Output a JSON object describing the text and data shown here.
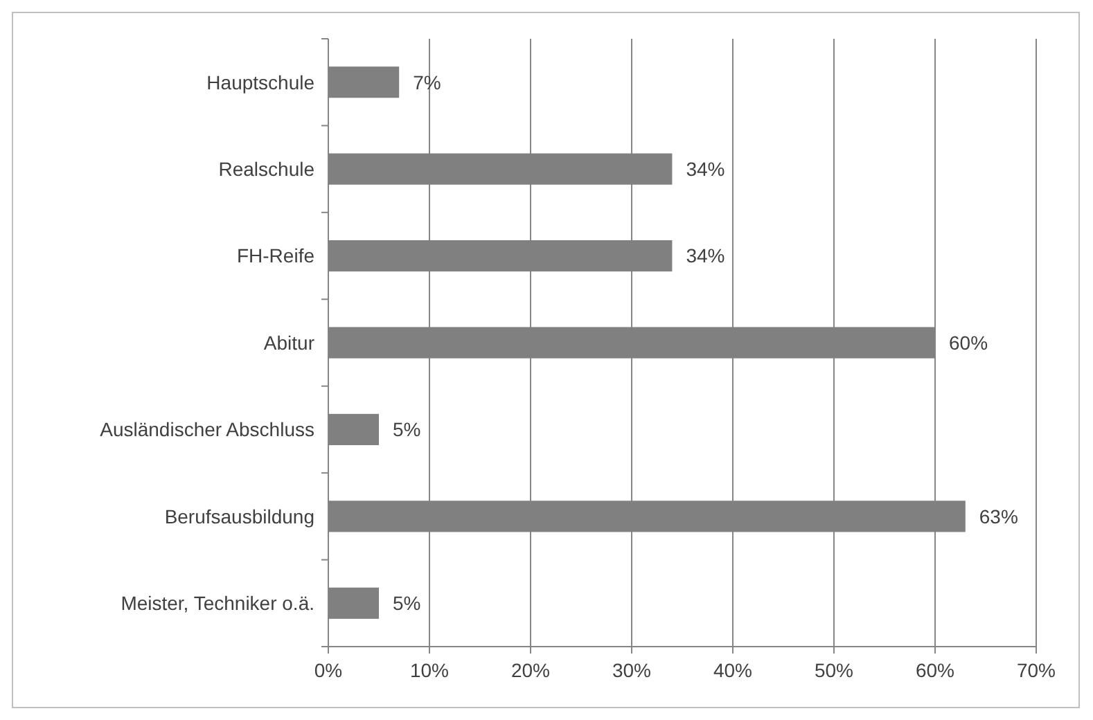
{
  "chart_data": {
    "type": "bar",
    "orientation": "horizontal",
    "categories": [
      "Hauptschule",
      "Realschule",
      "FH-Reife",
      "Abitur",
      "Ausländischer Abschluss",
      "Berufsausbildung",
      "Meister, Techniker o.ä."
    ],
    "values": [
      7,
      34,
      34,
      60,
      5,
      63,
      5
    ],
    "value_labels": [
      "7%",
      "34%",
      "34%",
      "60%",
      "5%",
      "63%",
      "5%"
    ],
    "color": "#808080",
    "xlim": [
      0,
      70
    ],
    "xticks": [
      {
        "value": 0,
        "label": "0%"
      },
      {
        "value": 10,
        "label": "10%"
      },
      {
        "value": 20,
        "label": "20%"
      },
      {
        "value": 30,
        "label": "30%"
      },
      {
        "value": 40,
        "label": "40%"
      },
      {
        "value": 50,
        "label": "50%"
      },
      {
        "value": 60,
        "label": "60%"
      },
      {
        "value": 70,
        "label": "70%"
      }
    ],
    "grid": "x"
  }
}
